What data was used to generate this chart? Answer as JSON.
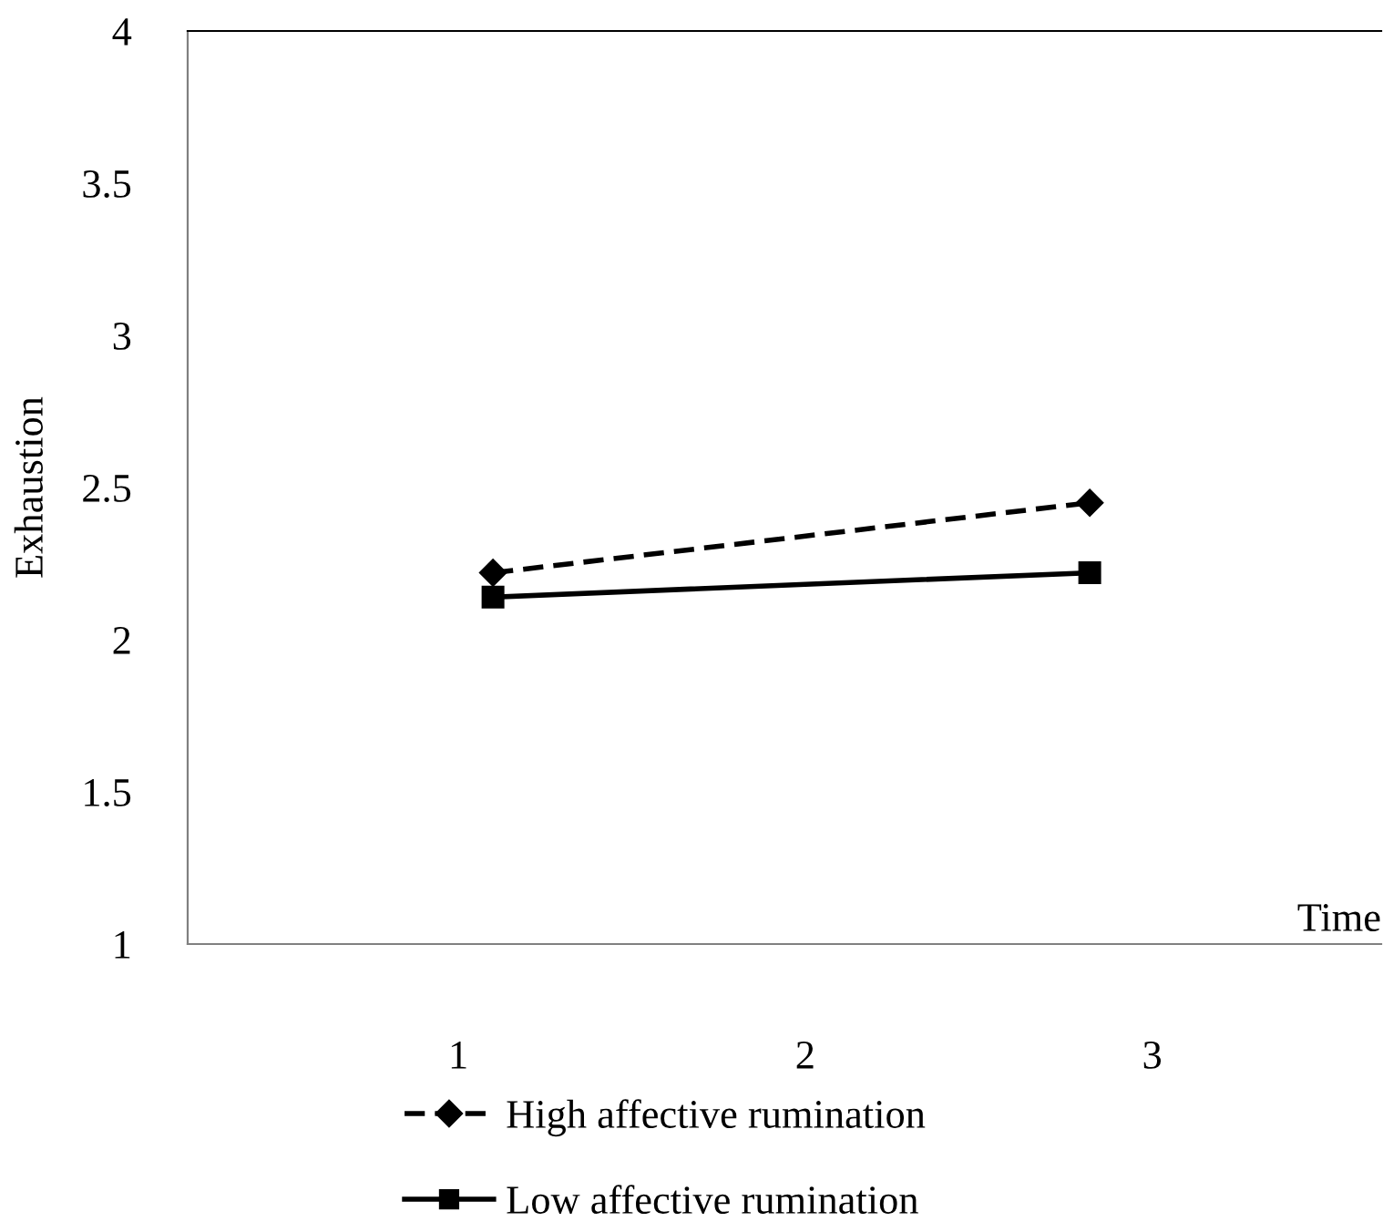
{
  "chart_data": {
    "type": "line",
    "xlabel": "Time",
    "ylabel": "Exhaustion",
    "x": [
      1.1,
      2.82
    ],
    "series": [
      {
        "name": "High affective rumination",
        "color": "#000000",
        "values": [
          2.22,
          2.45
        ],
        "marker": "diamond",
        "line_style": "dashed"
      },
      {
        "name": "Low affective rumination",
        "color": "#000000",
        "values": [
          2.14,
          2.22
        ],
        "marker": "square",
        "line_style": "solid"
      }
    ],
    "xlim": [
      0.22,
      3.66
    ],
    "xticks": [
      1,
      2,
      3
    ],
    "ylim": [
      1,
      4
    ],
    "yticks": [
      1,
      1.5,
      2,
      2.5,
      3,
      3.5,
      4
    ],
    "grid": false,
    "legend": "bottom"
  }
}
